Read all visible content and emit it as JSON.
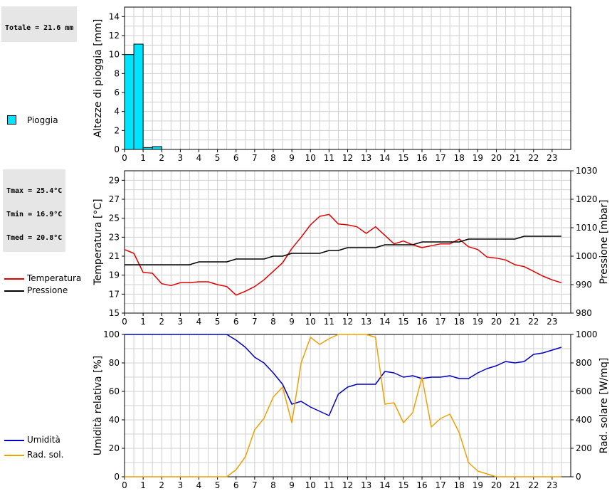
{
  "rain_stats": {
    "total": "Totale = 21.6 mm"
  },
  "temp_stats": {
    "tmax": "Tmax = 25.4°C",
    "tmin": "Tmin = 16.9°C",
    "tmed": "Tmed = 20.8°C"
  },
  "legends": {
    "rain": [
      {
        "label": "Pioggia",
        "color": "#00e5ff"
      }
    ],
    "temp": [
      {
        "label": "Temperatura",
        "color": "#e00000"
      },
      {
        "label": "Pressione",
        "color": "#000000"
      }
    ],
    "hum": [
      {
        "label": "Umidità",
        "color": "#0000c0"
      },
      {
        "label": "Rad. sol.",
        "color": "#f0a000"
      }
    ]
  },
  "chart_data": [
    {
      "type": "bar",
      "ylabel": "Altezze di pioggia [mm]",
      "xlim": [
        0,
        24
      ],
      "ylim": [
        0,
        15
      ],
      "xticks": [
        "0",
        "1",
        "2",
        "3",
        "4",
        "5",
        "6",
        "7",
        "8",
        "9",
        "10",
        "11",
        "12",
        "13",
        "14",
        "15",
        "16",
        "17",
        "18",
        "19",
        "20",
        "21",
        "22",
        "23"
      ],
      "yticks": [
        "0",
        "2",
        "4",
        "6",
        "8",
        "10",
        "12",
        "14"
      ],
      "grid": true,
      "legend_position": "left",
      "series": [
        {
          "name": "Pioggia",
          "color": "#00e5ff",
          "x": [
            0,
            0.5,
            1,
            1.5
          ],
          "values": [
            10,
            11.1,
            0.2,
            0.3
          ]
        }
      ]
    },
    {
      "type": "line",
      "ylabel": "Temperatura [°C]",
      "y2label": "Pressione [mbar]",
      "xlim": [
        0,
        24
      ],
      "ylim": [
        15,
        30
      ],
      "y2lim": [
        980,
        1030
      ],
      "xticks": [
        "0",
        "1",
        "2",
        "3",
        "4",
        "5",
        "6",
        "7",
        "8",
        "9",
        "10",
        "11",
        "12",
        "13",
        "14",
        "15",
        "16",
        "17",
        "18",
        "19",
        "20",
        "21",
        "22",
        "23"
      ],
      "yticks": [
        "15",
        "17",
        "19",
        "21",
        "23",
        "25",
        "27",
        "29"
      ],
      "y2ticks": [
        "980",
        "990",
        "1000",
        "1010",
        "1020",
        "1030"
      ],
      "grid": true,
      "legend_position": "left",
      "series": [
        {
          "name": "Temperatura",
          "color": "#e00000",
          "axis": "left",
          "x": [
            0,
            0.5,
            1,
            1.5,
            2,
            2.5,
            3,
            3.5,
            4,
            4.5,
            5,
            5.5,
            6,
            6.5,
            7,
            7.5,
            8,
            8.5,
            9,
            9.5,
            10,
            10.5,
            11,
            11.5,
            12,
            12.5,
            13,
            13.5,
            14,
            14.5,
            15,
            15.5,
            16,
            16.5,
            17,
            17.5,
            18,
            18.5,
            19,
            19.5,
            20,
            20.5,
            21,
            21.5,
            22,
            22.5,
            23,
            23.5
          ],
          "values": [
            21.7,
            21.3,
            19.3,
            19.2,
            18.1,
            17.9,
            18.2,
            18.2,
            18.3,
            18.3,
            18.0,
            17.8,
            16.9,
            17.3,
            17.8,
            18.5,
            19.4,
            20.3,
            21.8,
            23.0,
            24.3,
            25.2,
            25.4,
            24.4,
            24.3,
            24.1,
            23.4,
            24.1,
            23.2,
            22.3,
            22.6,
            22.2,
            21.9,
            22.1,
            22.3,
            22.3,
            22.8,
            22.0,
            21.7,
            20.9,
            20.8,
            20.6,
            20.1,
            19.9,
            19.4,
            18.9,
            18.5,
            18.2
          ]
        },
        {
          "name": "Pressione",
          "color": "#000000",
          "axis": "right",
          "x": [
            0,
            0.5,
            1,
            1.5,
            2,
            2.5,
            3,
            3.5,
            4,
            4.5,
            5,
            5.5,
            6,
            6.5,
            7,
            7.5,
            8,
            8.5,
            9,
            9.5,
            10,
            10.5,
            11,
            11.5,
            12,
            12.5,
            13,
            13.5,
            14,
            14.5,
            15,
            15.5,
            16,
            16.5,
            17,
            17.5,
            18,
            18.5,
            19,
            19.5,
            20,
            20.5,
            21,
            21.5,
            22,
            22.5,
            23,
            23.5
          ],
          "values": [
            997,
            997,
            997,
            997,
            997,
            997,
            997,
            997,
            998,
            998,
            998,
            998,
            999,
            999,
            999,
            999,
            1000,
            1000,
            1001,
            1001,
            1001,
            1001,
            1002,
            1002,
            1003,
            1003,
            1003,
            1003,
            1004,
            1004,
            1004,
            1004,
            1005,
            1005,
            1005,
            1005,
            1005,
            1006,
            1006,
            1006,
            1006,
            1006,
            1006,
            1007,
            1007,
            1007,
            1007,
            1007
          ]
        }
      ]
    },
    {
      "type": "line",
      "ylabel": "Umidità relativa [%]",
      "y2label": "Rad. solare [W/mq]",
      "xlim": [
        0,
        24
      ],
      "ylim": [
        0,
        100
      ],
      "y2lim": [
        0,
        1000
      ],
      "xticks": [
        "0",
        "1",
        "2",
        "3",
        "4",
        "5",
        "6",
        "7",
        "8",
        "9",
        "10",
        "11",
        "12",
        "13",
        "14",
        "15",
        "16",
        "17",
        "18",
        "19",
        "20",
        "21",
        "22",
        "23"
      ],
      "yticks": [
        "0",
        "20",
        "40",
        "60",
        "80",
        "100"
      ],
      "y2ticks": [
        "0",
        "200",
        "400",
        "600",
        "800",
        "1000"
      ],
      "grid": true,
      "legend_position": "left",
      "series": [
        {
          "name": "Umidità",
          "color": "#0000c0",
          "axis": "left",
          "x": [
            0,
            0.5,
            1,
            1.5,
            2,
            2.5,
            3,
            3.5,
            4,
            4.5,
            5,
            5.5,
            6,
            6.5,
            7,
            7.5,
            8,
            8.5,
            9,
            9.5,
            10,
            10.5,
            11,
            11.5,
            12,
            12.5,
            13,
            13.5,
            14,
            14.5,
            15,
            15.5,
            16,
            16.5,
            17,
            17.5,
            18,
            18.5,
            19,
            19.5,
            20,
            20.5,
            21,
            21.5,
            22,
            22.5,
            23,
            23.5
          ],
          "values": [
            100,
            100,
            100,
            100,
            100,
            100,
            100,
            100,
            100,
            100,
            100,
            100,
            96,
            91,
            84,
            80,
            73,
            65,
            51,
            53,
            49,
            46,
            43,
            58,
            63,
            65,
            65,
            65,
            74,
            73,
            70,
            71,
            69,
            70,
            70,
            71,
            69,
            69,
            73,
            76,
            78,
            81,
            80,
            81,
            86,
            87,
            89,
            91
          ]
        },
        {
          "name": "Rad. sol.",
          "color": "#f0a000",
          "axis": "right",
          "x": [
            0,
            0.5,
            1,
            1.5,
            2,
            2.5,
            3,
            3.5,
            4,
            4.5,
            5,
            5.5,
            6,
            6.5,
            7,
            7.5,
            8,
            8.5,
            9,
            9.5,
            10,
            10.5,
            11,
            11.5,
            12,
            12.5,
            13,
            13.5,
            14,
            14.5,
            15,
            15.5,
            16,
            16.5,
            17,
            17.5,
            18,
            18.5,
            19,
            19.5,
            20,
            20.5,
            21,
            21.5,
            22,
            22.5,
            23,
            23.5
          ],
          "values": [
            0,
            0,
            0,
            0,
            0,
            0,
            0,
            0,
            0,
            0,
            0,
            0,
            50,
            140,
            330,
            410,
            560,
            630,
            380,
            800,
            980,
            930,
            970,
            1000,
            1000,
            1000,
            1000,
            980,
            510,
            520,
            380,
            450,
            700,
            350,
            410,
            440,
            310,
            100,
            40,
            20,
            0,
            0,
            0,
            0,
            0,
            0,
            0,
            0
          ]
        }
      ]
    }
  ]
}
